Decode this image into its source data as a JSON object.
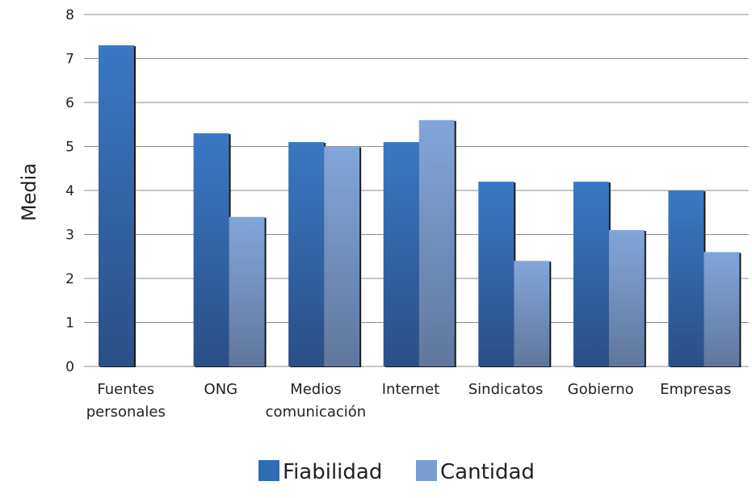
{
  "chart_data": {
    "type": "bar",
    "ylabel": "Media",
    "ylim": [
      0,
      8
    ],
    "yticks": [
      "0",
      "1",
      "2",
      "3",
      "4",
      "5",
      "6",
      "7",
      "8"
    ],
    "grid": true,
    "legend_position": "bottom",
    "categories": [
      [
        "Fuentes",
        "personales"
      ],
      [
        "ONG"
      ],
      [
        "Medios",
        "comunicación"
      ],
      [
        "Internet"
      ],
      [
        "Sindicatos"
      ],
      [
        "Gobierno"
      ],
      [
        "Empresas"
      ]
    ],
    "series": [
      {
        "name": "Fiabilidad",
        "color": "#2e6db4",
        "values": [
          7.3,
          5.3,
          5.1,
          5.1,
          4.2,
          4.2,
          4.0
        ]
      },
      {
        "name": "Cantidad",
        "color": "#7a9ed3",
        "values": [
          null,
          3.4,
          5.0,
          5.6,
          2.4,
          3.1,
          2.6
        ]
      }
    ]
  }
}
